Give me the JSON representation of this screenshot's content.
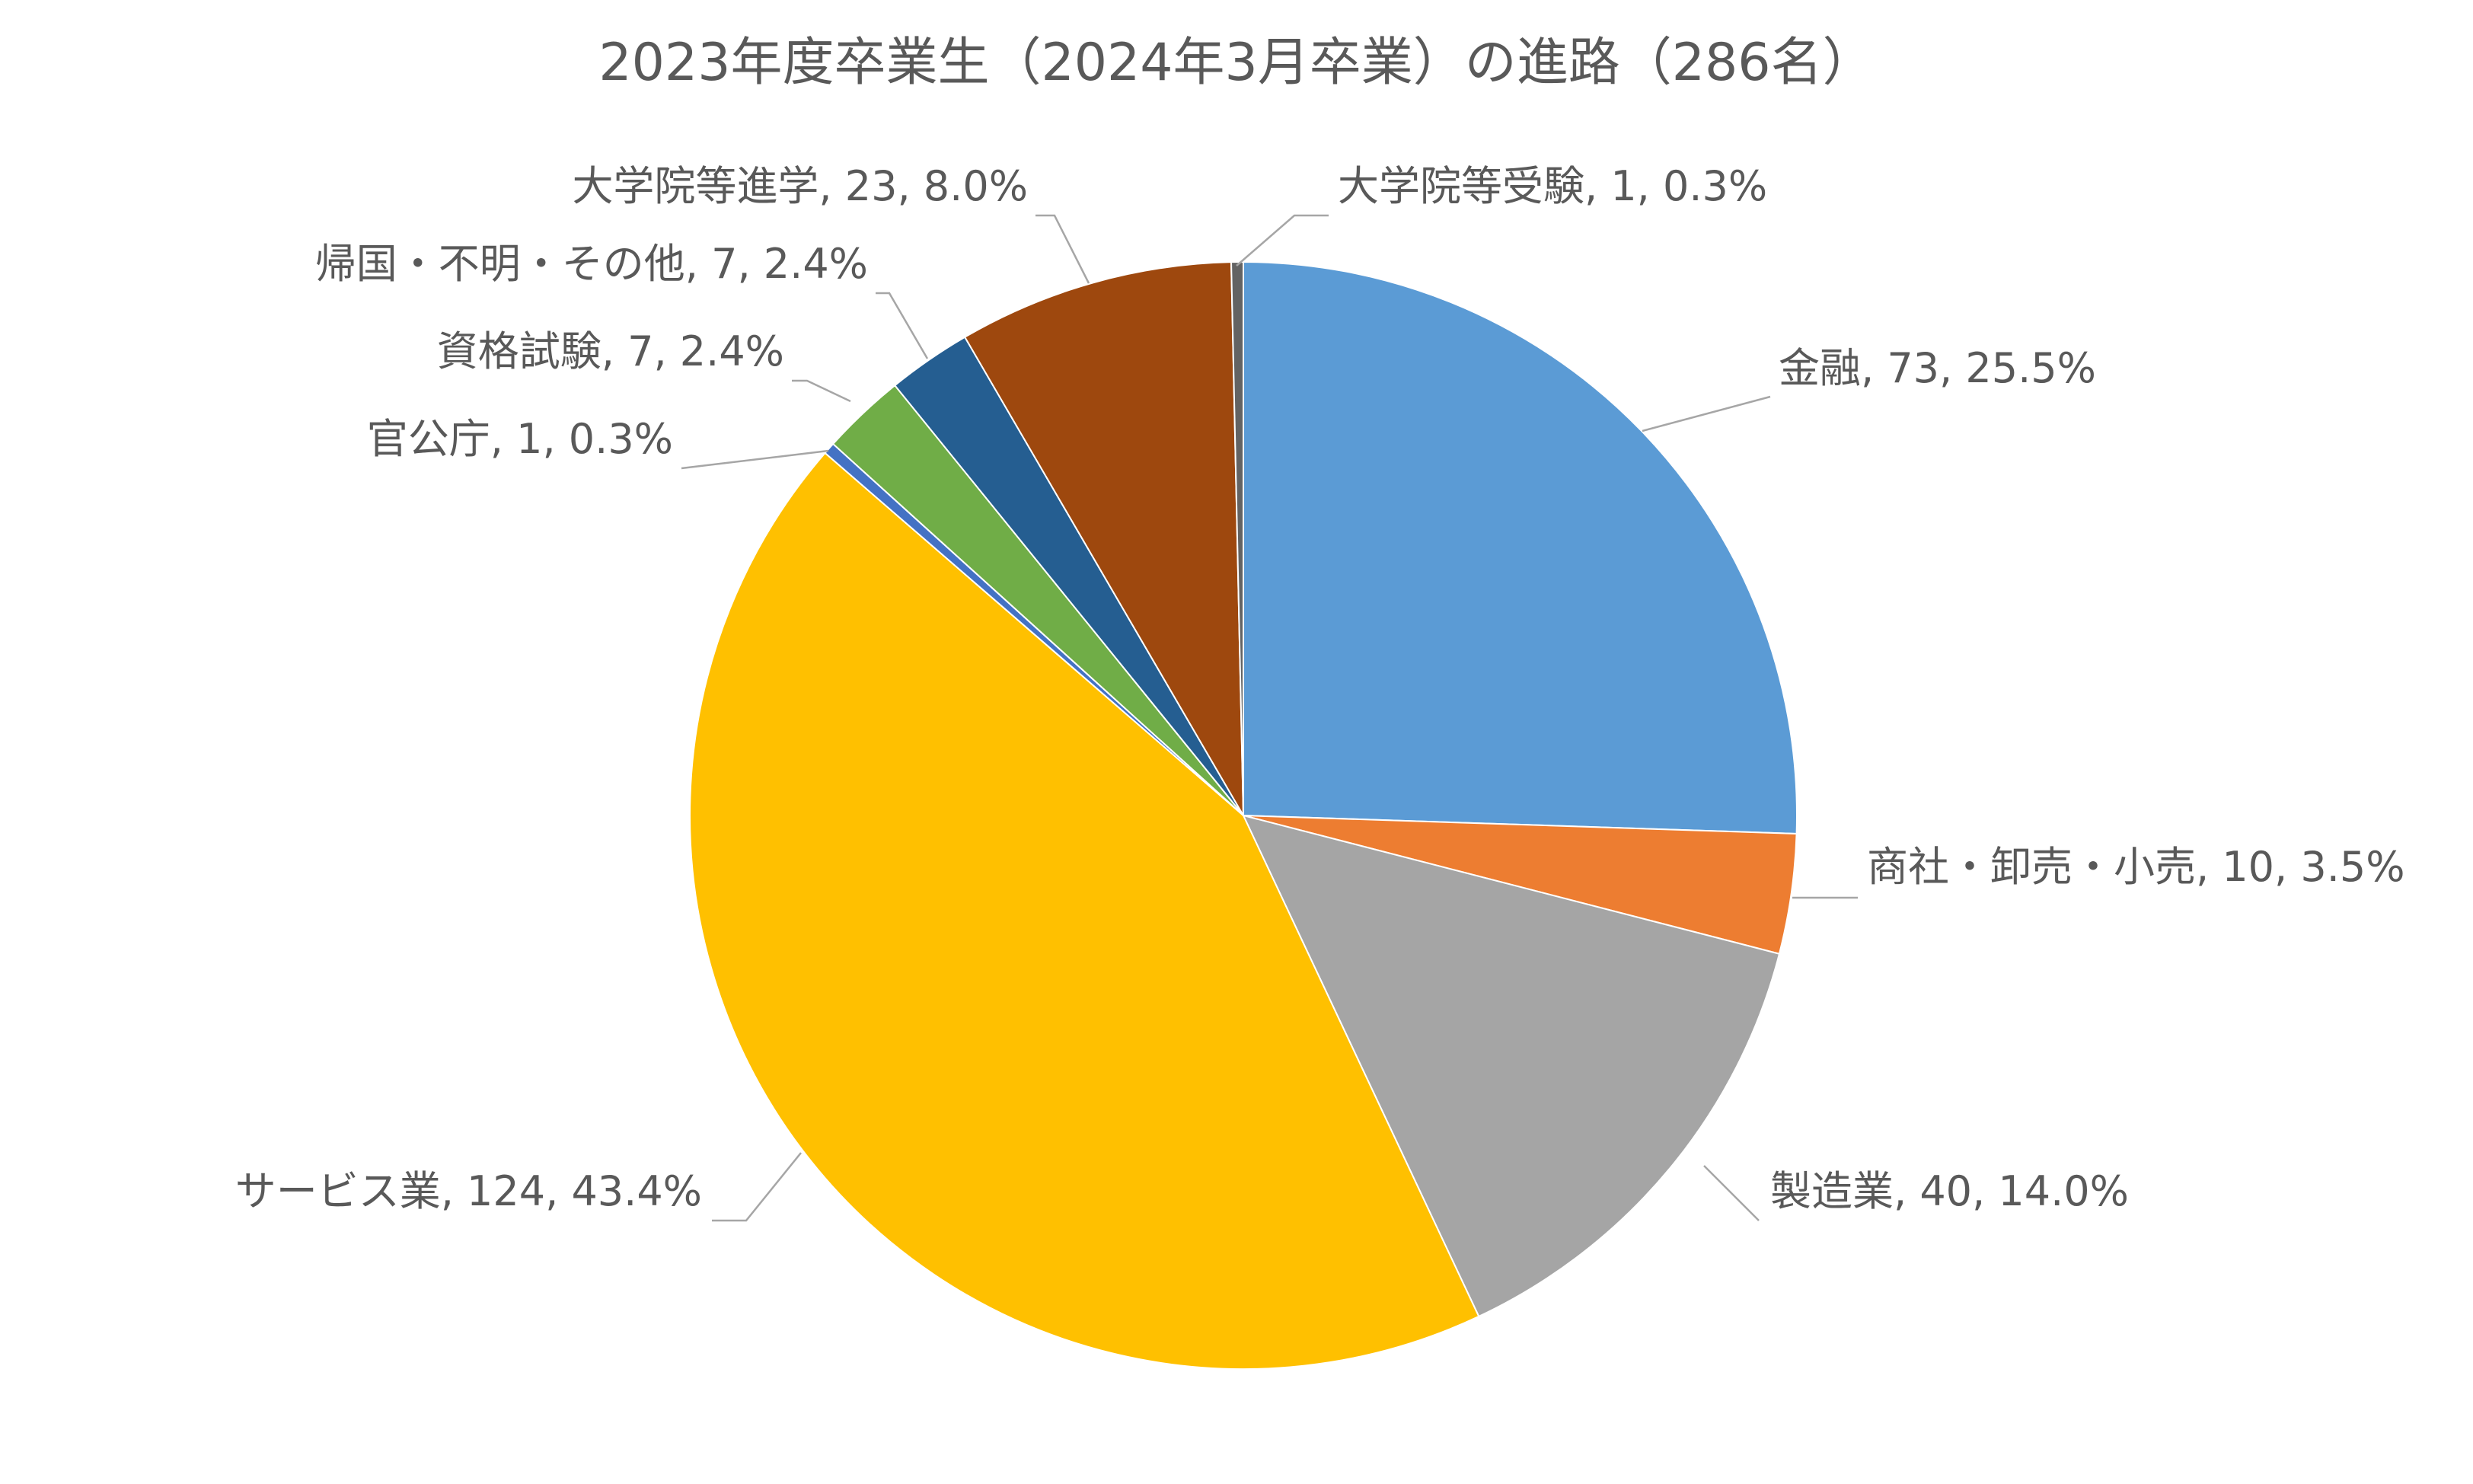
{
  "chart_data": {
    "type": "pie",
    "title": "2023年度卒業生（2024年3月卒業）の進路（286名）",
    "slices": [
      {
        "category": "金融",
        "value": 73,
        "percent": "25.5%",
        "label": "金融, 73, 25.5%",
        "color": "#5b9bd5"
      },
      {
        "category": "商社・卸売・小売",
        "value": 10,
        "percent": "3.5%",
        "label": "商社・卸売・小売, 10, 3.5%",
        "color": "#ed7d31"
      },
      {
        "category": "製造業",
        "value": 40,
        "percent": "14.0%",
        "label": "製造業, 40, 14.0%",
        "color": "#a5a5a5"
      },
      {
        "category": "サービス業",
        "value": 124,
        "percent": "43.4%",
        "label": "サービス業, 124, 43.4%",
        "color": "#ffc000"
      },
      {
        "category": "官公庁",
        "value": 1,
        "percent": "0.3%",
        "label": "官公庁, 1, 0.3%",
        "color": "#4472c4"
      },
      {
        "category": "資格試験",
        "value": 7,
        "percent": "2.4%",
        "label": "資格試験, 7, 2.4%",
        "color": "#70ad47"
      },
      {
        "category": "帰国・不明・その他",
        "value": 7,
        "percent": "2.4%",
        "label": "帰国・不明・その他, 7, 2.4%",
        "color": "#255e91"
      },
      {
        "category": "大学院等進学",
        "value": 23,
        "percent": "8.0%",
        "label": "大学院等進学, 23, 8.0%",
        "color": "#9e480e"
      },
      {
        "category": "大学院等受験",
        "value": 1,
        "percent": "0.3%",
        "label": "大学院等受験, 1, 0.3%",
        "color": "#636363"
      }
    ],
    "start_angle": "12 o'clock",
    "direction": "clockwise",
    "legend": "none"
  }
}
